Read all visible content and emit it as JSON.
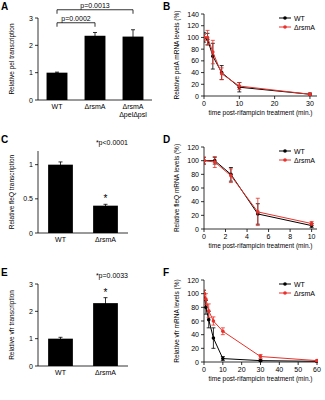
{
  "chart_data": [
    {
      "panel": "A",
      "type": "bar",
      "y_label": "Relative pel transcription",
      "categories": [
        "WT",
        "ΔrsmA",
        "ΔrsmA ΔpelΔpsl"
      ],
      "values": [
        1,
        2.35,
        2.32
      ],
      "errors": [
        0.02,
        0.12,
        0.25
      ],
      "color": "#000000",
      "ylim": [
        0,
        3
      ],
      "yticks": [
        0,
        1,
        2,
        3
      ],
      "annotations": [
        {
          "text": "p=0.0002",
          "from": 0,
          "to": 1
        },
        {
          "text": "p=0.0013",
          "from": 0,
          "to": 2
        }
      ]
    },
    {
      "panel": "B",
      "type": "line",
      "y_label": "Relative pelA mRNA levels (%)",
      "x_label": "time post-rifampicin treatment (min.)",
      "x": [
        0,
        1,
        2.5,
        5,
        10,
        30
      ],
      "series": [
        {
          "name": "WT",
          "color": "#000000",
          "values": [
            100,
            97,
            68,
            40,
            15,
            3
          ],
          "errors": [
            8,
            10,
            22,
            12,
            8,
            2
          ]
        },
        {
          "name": "ΔrsmA",
          "color": "#e8312a",
          "values": [
            100,
            100,
            75,
            38,
            17,
            3
          ],
          "errors": [
            5,
            12,
            20,
            10,
            6,
            2
          ]
        }
      ],
      "xlim": [
        0,
        32
      ],
      "xticks": [
        0,
        10,
        20,
        30
      ],
      "ylim": [
        0,
        140
      ],
      "yticks": [
        0,
        20,
        40,
        60,
        80,
        100,
        120,
        140
      ],
      "legend": "top-right",
      "marker": "circle",
      "line_style": "solid"
    },
    {
      "panel": "C",
      "type": "bar",
      "y_label": "Relative fleQ transcription",
      "categories": [
        "WT",
        "ΔrsmA"
      ],
      "values": [
        1,
        0.4
      ],
      "errors": [
        0.04,
        0.02
      ],
      "color": "#000000",
      "ylim": [
        0,
        1.2
      ],
      "yticks": [
        0,
        0.5,
        1
      ],
      "annotations": [
        {
          "text": "*p<0.0001"
        },
        {
          "text": "*",
          "at": 1
        }
      ]
    },
    {
      "panel": "D",
      "type": "line",
      "y_label": "Relative fleQ mRNA levels (%)",
      "x_label": "time post-rifampicin treatment (min.)",
      "x": [
        0,
        1,
        2.5,
        5,
        10
      ],
      "series": [
        {
          "name": "WT",
          "color": "#000000",
          "values": [
            100,
            100,
            80,
            22,
            5
          ],
          "errors": [
            5,
            5,
            10,
            15,
            3
          ]
        },
        {
          "name": "ΔrsmA",
          "color": "#e8312a",
          "values": [
            100,
            98,
            78,
            25,
            8
          ],
          "errors": [
            5,
            8,
            10,
            20,
            3
          ]
        }
      ],
      "xlim": [
        0,
        10.5
      ],
      "xticks": [
        0,
        2,
        4,
        6,
        8,
        10
      ],
      "ylim": [
        0,
        120
      ],
      "yticks": [
        0,
        20,
        40,
        60,
        80,
        100,
        120
      ],
      "legend": "top-right",
      "marker": "circle",
      "line_style": "solid"
    },
    {
      "panel": "E",
      "type": "bar",
      "y_label": "Relative vfr transcription",
      "categories": [
        "WT",
        "ΔrsmA"
      ],
      "values": [
        1,
        2.3
      ],
      "errors": [
        0.05,
        0.2
      ],
      "color": "#000000",
      "ylim": [
        0,
        3
      ],
      "yticks": [
        0,
        1,
        2,
        3
      ],
      "annotations": [
        {
          "text": "*p=0.0033"
        },
        {
          "text": "*",
          "at": 1
        }
      ]
    },
    {
      "panel": "F",
      "type": "line",
      "y_label": "Relative vfr mRNA levels (%)",
      "x_label": "time post-rifampicin treatment (min.)",
      "x": [
        0,
        1,
        2.5,
        5,
        10,
        30,
        60
      ],
      "series": [
        {
          "name": "WT",
          "color": "#000000",
          "values": [
            100,
            80,
            62,
            35,
            5,
            2,
            1
          ],
          "errors": [
            5,
            10,
            12,
            15,
            3,
            1,
            1
          ]
        },
        {
          "name": "ΔrsmA",
          "color": "#e8312a",
          "values": [
            100,
            92,
            75,
            60,
            45,
            8,
            2
          ],
          "errors": [
            5,
            8,
            10,
            6,
            5,
            3,
            1
          ]
        }
      ],
      "xlim": [
        0,
        60
      ],
      "xticks": [
        0,
        10,
        20,
        30,
        40,
        50,
        60
      ],
      "ylim": [
        0,
        120
      ],
      "yticks": [
        0,
        20,
        40,
        60,
        80,
        100,
        120
      ],
      "legend": "top-right",
      "marker": "circle",
      "line_style": "solid"
    }
  ]
}
